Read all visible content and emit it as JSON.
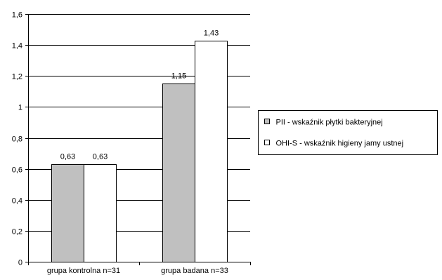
{
  "chart_data": {
    "type": "bar",
    "title": "",
    "xlabel": "",
    "ylabel": "",
    "categories": [
      "grupa kontrolna n=31",
      "grupa badana n=33"
    ],
    "series": [
      {
        "name": "PII - wskaźnik płytki bakteryjnej",
        "values": [
          0.63,
          1.15
        ],
        "labels": [
          "0,63",
          "1,15"
        ],
        "color": "#c0c0c0"
      },
      {
        "name": "OHI-S - wskaźnik higieny jamy ustnej",
        "values": [
          0.63,
          1.43
        ],
        "labels": [
          "0,63",
          "1,43"
        ],
        "color": "#ffffff"
      }
    ],
    "ylim": [
      0,
      1.6
    ],
    "yticks": [
      0,
      0.2,
      0.4,
      0.6,
      0.8,
      1,
      1.2,
      1.4,
      1.6
    ],
    "ytick_labels": [
      "0",
      "0,2",
      "0,4",
      "0,6",
      "0,8",
      "1",
      "1,2",
      "1,4",
      "1,6"
    ],
    "grid": true,
    "legend_position": "right"
  }
}
